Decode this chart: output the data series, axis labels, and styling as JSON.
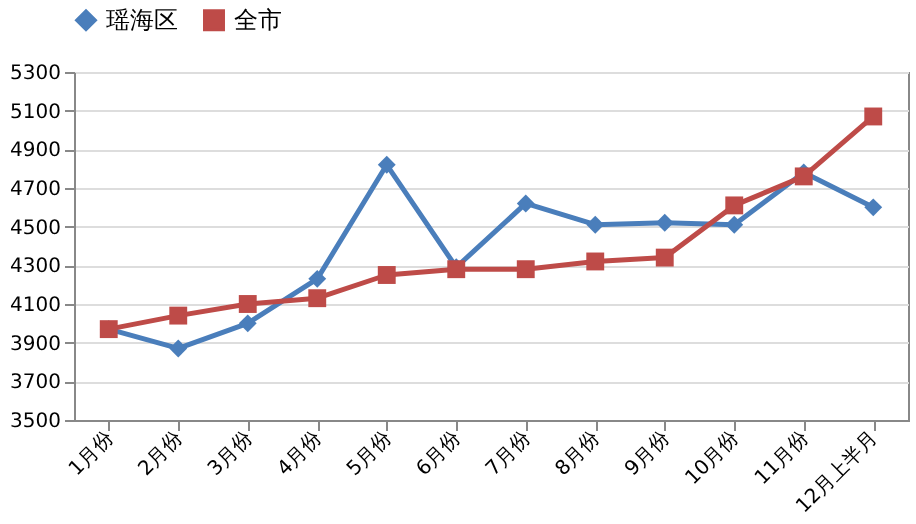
{
  "chart_data": {
    "type": "line",
    "categories": [
      "1月份",
      "2月份",
      "3月份",
      "4月份",
      "5月份",
      "6月份",
      "7月份",
      "8月份",
      "9月份",
      "10月份",
      "11月份",
      "12月上半月"
    ],
    "series": [
      {
        "name": "瑶海区",
        "color": "#4a7ebb",
        "marker": "diamond",
        "values": [
          3970,
          3870,
          4000,
          4230,
          4820,
          4290,
          4620,
          4510,
          4520,
          4510,
          4780,
          4600
        ]
      },
      {
        "name": "全市",
        "color": "#be4b48",
        "marker": "square",
        "values": [
          3970,
          4040,
          4100,
          4130,
          4250,
          4280,
          4280,
          4320,
          4340,
          4610,
          4760,
          5070
        ]
      }
    ],
    "ylim": [
      3500,
      5300
    ],
    "yticks": [
      3500,
      3700,
      3900,
      4100,
      4300,
      4500,
      4700,
      4900,
      5100,
      5300
    ],
    "grid": "y",
    "legend": "top",
    "line_style": "solid"
  }
}
